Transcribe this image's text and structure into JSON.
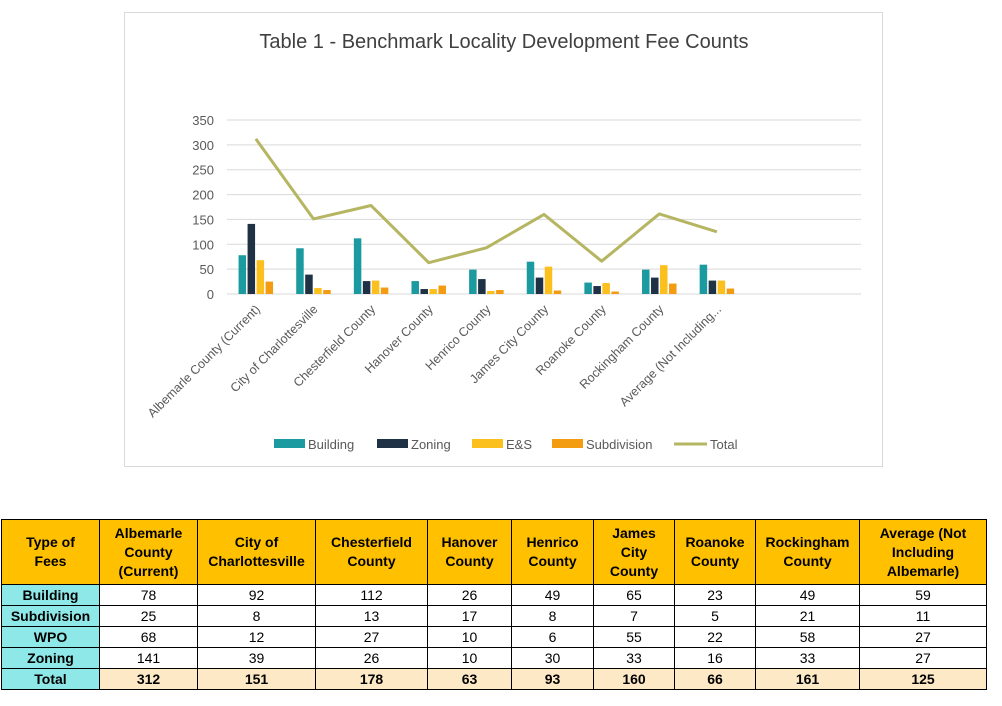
{
  "chart_data": {
    "type": "bar",
    "title": "Table 1 - Benchmark Locality Development Fee Counts",
    "categories": [
      "Albemarle County (Current)",
      "City of Charlottesville",
      "Chesterfield County",
      "Hanover County",
      "Henrico County",
      "James City County",
      "Roanoke County",
      "Rockingham County",
      "Average (Not Including..."
    ],
    "series": [
      {
        "name": "Building",
        "type": "bar",
        "color": "#1b9aa0",
        "values": [
          78,
          92,
          112,
          26,
          49,
          65,
          23,
          49,
          59
        ]
      },
      {
        "name": "Zoning",
        "type": "bar",
        "color": "#1f3144",
        "values": [
          141,
          39,
          26,
          10,
          30,
          33,
          16,
          33,
          27
        ]
      },
      {
        "name": "E&S",
        "type": "bar",
        "color": "#fbbf1e",
        "values": [
          68,
          12,
          27,
          10,
          6,
          55,
          22,
          58,
          27
        ]
      },
      {
        "name": "Subdivision",
        "type": "bar",
        "color": "#f39c12",
        "values": [
          25,
          8,
          13,
          17,
          8,
          7,
          5,
          21,
          11
        ]
      },
      {
        "name": "Total",
        "type": "line",
        "color": "#b5b562",
        "values": [
          312,
          151,
          178,
          63,
          93,
          160,
          66,
          161,
          125
        ]
      }
    ],
    "yticks": [
      "0",
      "50",
      "100",
      "150",
      "200",
      "250",
      "300",
      "350"
    ],
    "ylim": [
      0,
      350
    ],
    "grid": true,
    "legend_position": "bottom"
  },
  "table": {
    "headers": [
      [
        "Type of",
        "Fees"
      ],
      [
        "Albemarle",
        "County",
        "(Current)"
      ],
      [
        "City of",
        "Charlottesville"
      ],
      [
        "Chesterfield",
        "County"
      ],
      [
        "Hanover",
        "County"
      ],
      [
        "Henrico",
        "County"
      ],
      [
        "James",
        "City",
        "County"
      ],
      [
        "Roanoke",
        "County"
      ],
      [
        "Rockingham",
        "County"
      ],
      [
        "Average (Not",
        "Including",
        "Albemarle)"
      ]
    ],
    "rows": [
      {
        "label": "Building",
        "values": [
          "78",
          "92",
          "112",
          "26",
          "49",
          "65",
          "23",
          "49",
          "59"
        ]
      },
      {
        "label": "Subdivision",
        "values": [
          "25",
          "8",
          "13",
          "17",
          "8",
          "7",
          "5",
          "21",
          "11"
        ]
      },
      {
        "label": "WPO",
        "values": [
          "68",
          "12",
          "27",
          "10",
          "6",
          "55",
          "22",
          "58",
          "27"
        ]
      },
      {
        "label": "Zoning",
        "values": [
          "141",
          "39",
          "26",
          "10",
          "30",
          "33",
          "16",
          "33",
          "27"
        ]
      },
      {
        "label": "Total",
        "values": [
          "312",
          "151",
          "178",
          "63",
          "93",
          "160",
          "66",
          "161",
          "125"
        ]
      }
    ]
  }
}
